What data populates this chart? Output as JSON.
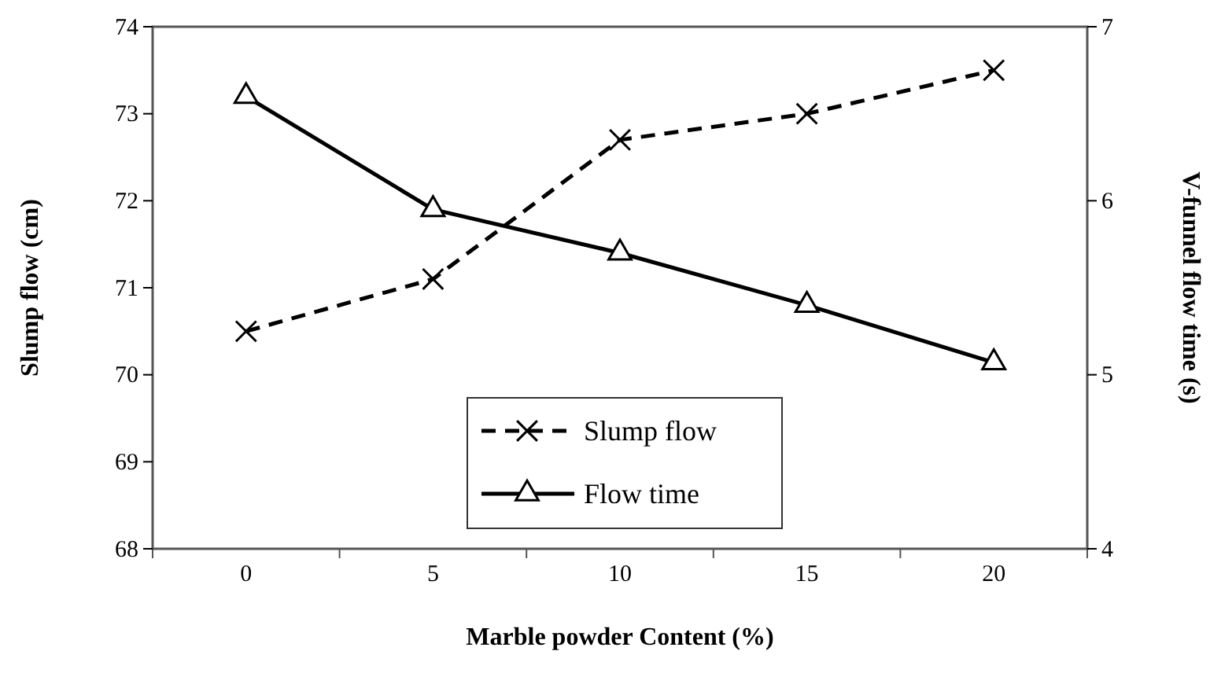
{
  "chart_data": {
    "type": "line",
    "xlabel": "Marble powder Content (%)",
    "ylabel": "Slump flow  (cm)",
    "y2label": "V-funnel flow time (s)",
    "categories": [
      "0",
      "5",
      "10",
      "15",
      "20"
    ],
    "series": [
      {
        "name": "Slump flow",
        "color": "#000000",
        "values": [
          70.5,
          71.1,
          72.7,
          73.0,
          73.5
        ],
        "marker": "cross",
        "line_style": "dashed"
      },
      {
        "name": "Flow time",
        "color": "#000000",
        "values": [
          6.6,
          5.95,
          5.7,
          5.4,
          5.07
        ],
        "marker": "triangle",
        "line_style": "solid",
        "axis": "y2"
      }
    ],
    "ylim": [
      68,
      74
    ],
    "yticks": [
      68,
      69,
      70,
      71,
      72,
      73,
      74
    ],
    "y2lim": [
      4,
      7
    ],
    "y2ticks": [
      4,
      5,
      6,
      7
    ],
    "grid": false,
    "legend": "bottom"
  }
}
